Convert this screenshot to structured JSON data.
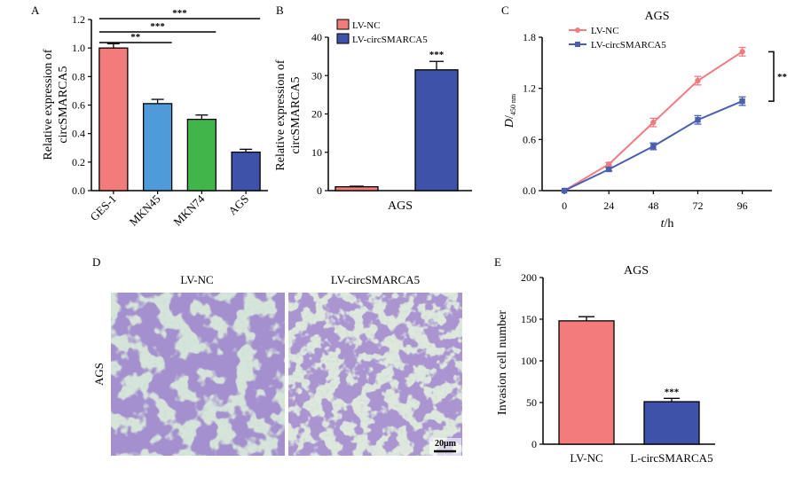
{
  "colors": {
    "ges1": "#f47b7b",
    "mkn45": "#4f9ad8",
    "mkn74": "#3fb54a",
    "ags": "#3d52a8",
    "lvnc": "#f47b7b",
    "lvcirc": "#3d52a8",
    "line_nc": "#f07c80",
    "line_circ": "#4a5fb0"
  },
  "panel_labels": {
    "a": "A",
    "b": "B",
    "c": "C",
    "d": "D",
    "e": "E"
  },
  "chart_data": [
    {
      "id": "A",
      "type": "bar",
      "categories": [
        "GES-1",
        "MKN45",
        "MKN74",
        "AGS"
      ],
      "values": [
        1.0,
        0.61,
        0.5,
        0.27
      ],
      "errors": [
        0.03,
        0.03,
        0.03,
        0.02
      ],
      "ylabel": "Relative expression of circSMARCA5",
      "ylabel_lines": [
        "Relative expression of",
        "circSMARCA5"
      ],
      "ylim": [
        0,
        1.2
      ],
      "yticks": [
        "0.0",
        "0.2",
        "0.4",
        "0.6",
        "0.8",
        "1.0",
        "1.2"
      ],
      "brackets": [
        {
          "from": 0,
          "to": 3,
          "label": "***"
        },
        {
          "from": 0,
          "to": 2,
          "label": "***"
        },
        {
          "from": 0,
          "to": 1,
          "label": "**"
        }
      ]
    },
    {
      "id": "B",
      "type": "bar",
      "categories": [
        "LV-NC",
        "LV-circSMARCA5"
      ],
      "xlabel": "AGS",
      "values": [
        1.0,
        31.5
      ],
      "errors": [
        0.15,
        2.2
      ],
      "ylabel_lines": [
        "Relative expression of",
        "circSMARCA5"
      ],
      "ylim": [
        0,
        40
      ],
      "yticks": [
        "0",
        "10",
        "20",
        "30",
        "40"
      ],
      "legend": [
        "LV-NC",
        "LV-circSMARCA5"
      ],
      "annotation": "***"
    },
    {
      "id": "C",
      "type": "line",
      "title": "AGS",
      "x": [
        0,
        24,
        48,
        72,
        96
      ],
      "xticks": [
        "0",
        "24",
        "48",
        "72",
        "96"
      ],
      "xlabel_italic": "t",
      "xlabel_rest": "/h",
      "ylabel_main": "D",
      "ylabel_sub": "450 nm",
      "ylim": [
        0,
        1.8
      ],
      "yticks": [
        "0.0",
        "0.6",
        "1.2",
        "1.8"
      ],
      "series": [
        {
          "name": "LV-NC",
          "values": [
            0,
            0.31,
            0.8,
            1.29,
            1.63
          ],
          "errors": [
            0.01,
            0.02,
            0.05,
            0.05,
            0.05
          ]
        },
        {
          "name": "LV-circSMARCA5",
          "values": [
            0,
            0.25,
            0.52,
            0.83,
            1.05
          ],
          "errors": [
            0.01,
            0.02,
            0.04,
            0.05,
            0.05
          ]
        }
      ],
      "annotation": "**"
    },
    {
      "id": "E",
      "type": "bar",
      "title": "AGS",
      "categories": [
        "LV-NC",
        "L-circSMARCA5"
      ],
      "values": [
        148,
        51
      ],
      "errors": [
        5,
        4
      ],
      "ylabel": "Invasion cell number",
      "ylim": [
        0,
        200
      ],
      "yticks": [
        "0",
        "50",
        "100",
        "150",
        "200"
      ],
      "annotation": "***"
    }
  ],
  "panel_d": {
    "left_title": "LV-NC",
    "right_title": "LV-circSMARCA5",
    "row_label": "AGS",
    "scale_bar": "20μm"
  }
}
